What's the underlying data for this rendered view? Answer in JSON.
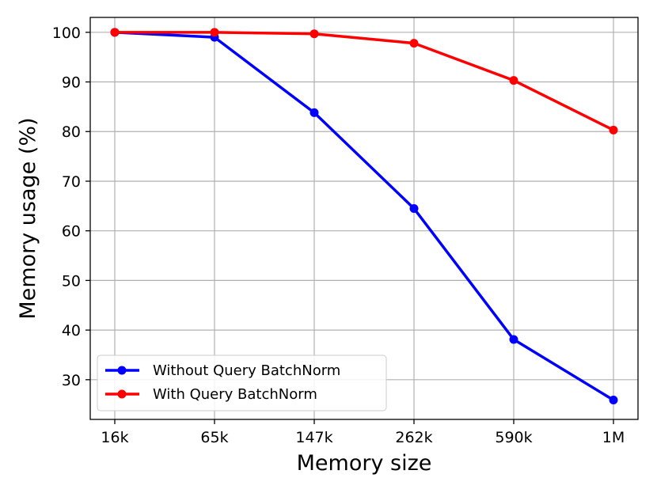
{
  "chart_data": {
    "type": "line",
    "categories": [
      "16k",
      "65k",
      "147k",
      "262k",
      "590k",
      "1M"
    ],
    "xlabel": "Memory size",
    "ylabel": "Memory usage (%)",
    "ylim": [
      22,
      103
    ],
    "yticks": [
      30,
      40,
      50,
      60,
      70,
      80,
      90,
      100
    ],
    "grid": true,
    "legend_position": "lower-left",
    "series": [
      {
        "name": "Without Query BatchNorm",
        "color": "#0000ff",
        "marker": "circle",
        "values": [
          100.0,
          99.0,
          83.8,
          64.5,
          38.1,
          25.9
        ]
      },
      {
        "name": "With Query BatchNorm",
        "color": "#ff0000",
        "marker": "circle",
        "values": [
          100.0,
          100.0,
          99.7,
          97.8,
          90.3,
          80.3
        ]
      }
    ]
  }
}
